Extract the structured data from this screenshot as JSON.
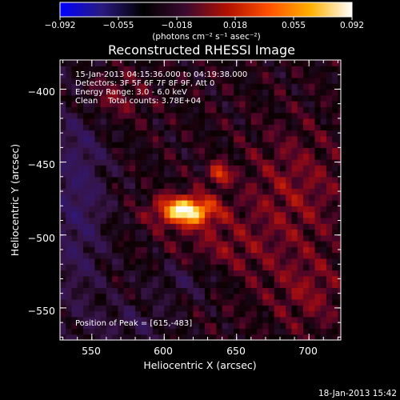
{
  "colorbar": {
    "tick_labels": [
      "−0.092",
      "−0.055",
      "−0.018",
      "0.018",
      "0.055",
      "0.092"
    ],
    "range": [
      -0.092,
      0.092
    ],
    "unit_label": "(photons cm⁻² s⁻¹ asec⁻²)",
    "colors": [
      "#0000ff",
      "#2a1a80",
      "#000000",
      "#3a0a30",
      "#b01000",
      "#ff5000",
      "#ffb000",
      "#ffffff"
    ]
  },
  "chart_data": {
    "type": "heatmap",
    "title": "Reconstructed RHESSI Image",
    "xlabel": "Heliocentric X (arcsec)",
    "ylabel": "Heliocentric Y (arcsec)",
    "xlim": [
      528,
      722
    ],
    "ylim": [
      -572,
      -380
    ],
    "x_ticks": [
      550,
      600,
      650,
      700
    ],
    "y_ticks": [
      -550,
      -500,
      -450,
      -400
    ],
    "x_tick_labels": [
      "550",
      "600",
      "650",
      "700"
    ],
    "y_tick_labels": [
      "−550",
      "−500",
      "−450",
      "−400"
    ],
    "info_lines": [
      "15-Jan-2013 04:15:36.000 to 04:19:38.000",
      "Detectors: 3F 5F 6F 7F 8F 9F, Att 0",
      "Energy Range: 3.0 - 6.0 keV",
      "Clean    Total counts: 3.78E+04"
    ],
    "peak_text": "Position of Peak = [615,-483]",
    "peak": {
      "x": 615,
      "y": -483
    },
    "sources": [
      {
        "x": 615,
        "y": -483,
        "sx": 14,
        "sy": 7,
        "amp": 0.092
      },
      {
        "x": 638,
        "y": -458,
        "sx": 5,
        "sy": 5,
        "amp": 0.05
      },
      {
        "x": 560,
        "y": -405,
        "sx": 18,
        "sy": 12,
        "amp": 0.022
      },
      {
        "x": 640,
        "y": -515,
        "sx": 25,
        "sy": 20,
        "amp": 0.02
      },
      {
        "x": 690,
        "y": -470,
        "sx": 25,
        "sy": 30,
        "amp": 0.022
      },
      {
        "x": 700,
        "y": -540,
        "sx": 18,
        "sy": 18,
        "amp": 0.02
      }
    ],
    "negative_regions": [
      {
        "x": 540,
        "y": -470,
        "sx": 15,
        "sy": 60,
        "amp": -0.03
      },
      {
        "x": 620,
        "y": -530,
        "sx": 22,
        "sy": 10,
        "amp": -0.025
      },
      {
        "x": 580,
        "y": -560,
        "sx": 20,
        "sy": 10,
        "amp": -0.018
      }
    ]
  },
  "footer": {
    "date": "18-Jan-2013 15:42"
  }
}
